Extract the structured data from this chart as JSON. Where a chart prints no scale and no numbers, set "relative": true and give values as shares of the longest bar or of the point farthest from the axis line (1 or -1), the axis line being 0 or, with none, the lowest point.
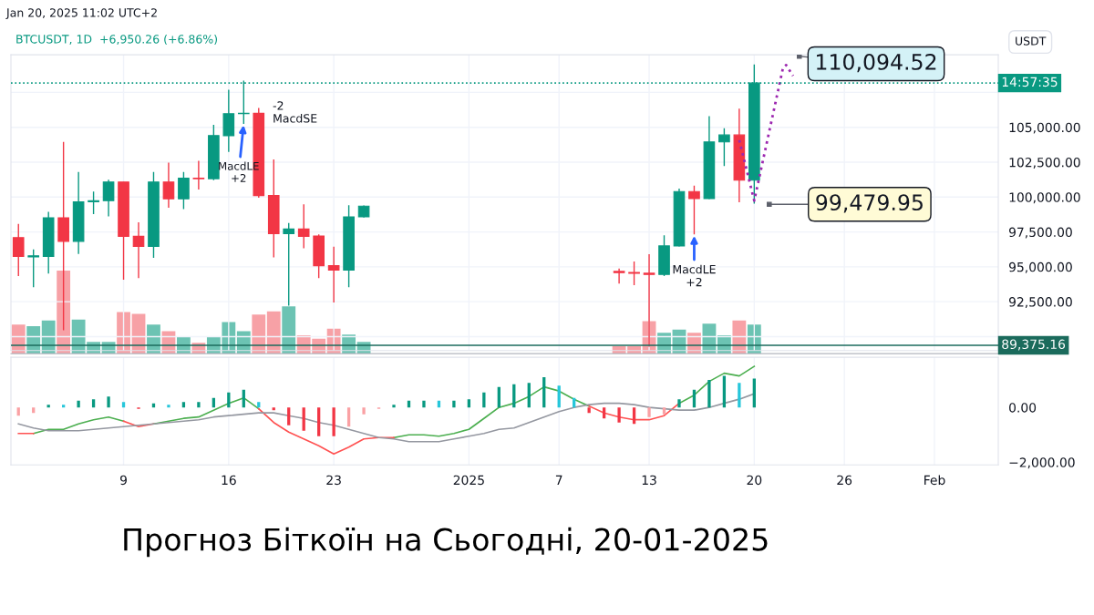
{
  "chart_data": [
    {
      "type": "candlestick",
      "title": "Прогноз Біткоїн на Сьогодні, 20-01-2025",
      "subtitle": "BTCUSDT, 1D  +6,950.26 (+6.86%)",
      "ylabel": "USDT",
      "x": [
        "2024-12-02",
        "2024-12-03",
        "2024-12-04",
        "2024-12-05",
        "2024-12-06",
        "2024-12-07",
        "2024-12-08",
        "2024-12-09",
        "2024-12-10",
        "2024-12-11",
        "2024-12-12",
        "2024-12-13",
        "2024-12-14",
        "2024-12-15",
        "2024-12-16",
        "2024-12-17",
        "2024-12-18",
        "2024-12-19",
        "2024-12-20",
        "2024-12-21",
        "2024-12-22",
        "2024-12-23",
        "2024-12-24",
        "2024-12-25",
        "2025-01-11",
        "2025-01-12",
        "2025-01-13",
        "2025-01-14",
        "2025-01-15",
        "2025-01-16",
        "2025-01-17",
        "2025-01-18",
        "2025-01-19",
        "2025-01-20"
      ],
      "ohlc": [
        [
          97100,
          98080,
          94340,
          95750
        ],
        [
          95720,
          96240,
          93540,
          95790
        ],
        [
          95750,
          98940,
          94510,
          98510
        ],
        [
          98510,
          103950,
          90450,
          96830
        ],
        [
          96830,
          101790,
          95920,
          99660
        ],
        [
          99660,
          100390,
          98770,
          99740
        ],
        [
          99740,
          101250,
          98620,
          101080
        ],
        [
          101080,
          101080,
          94080,
          97190
        ],
        [
          97190,
          98190,
          94190,
          96460
        ],
        [
          96460,
          101790,
          95640,
          101080
        ],
        [
          101080,
          102460,
          99240,
          99870
        ],
        [
          99870,
          101790,
          99140,
          101360
        ],
        [
          101360,
          102590,
          100540,
          101320
        ],
        [
          101320,
          105180,
          101210,
          104410
        ],
        [
          104390,
          107690,
          103240,
          105980
        ],
        [
          105980,
          108340,
          105250,
          106000
        ],
        [
          106000,
          106390,
          99960,
          100110
        ],
        [
          100110,
          102700,
          95680,
          97370
        ],
        [
          97370,
          98140,
          92220,
          97710
        ],
        [
          97710,
          99480,
          96330,
          97190
        ],
        [
          97210,
          97320,
          94190,
          95080
        ],
        [
          95080,
          96440,
          92440,
          94770
        ],
        [
          94770,
          99420,
          93540,
          98580
        ],
        [
          98580,
          99400,
          98530,
          99350
        ],
        [
          94670,
          94880,
          93800,
          94580
        ],
        [
          94600,
          95380,
          93690,
          94540
        ],
        [
          94540,
          95900,
          89270,
          94450
        ],
        [
          94450,
          97260,
          94340,
          96500
        ],
        [
          96500,
          100600,
          96460,
          100390
        ],
        [
          100390,
          100820,
          97320,
          99890
        ],
        [
          99890,
          105790,
          99850,
          103950
        ],
        [
          103950,
          104930,
          102230,
          104450
        ],
        [
          104450,
          106330,
          99630,
          101210
        ],
        [
          101210,
          109500,
          99530,
          108170
        ]
      ],
      "colors": [
        "#f23645",
        "#089981",
        "#089981",
        "#f23645",
        "#089981",
        "#089981",
        "#089981",
        "#f23645",
        "#f23645",
        "#089981",
        "#f23645",
        "#089981",
        "#f23645",
        "#089981",
        "#089981",
        "#089981",
        "#f23645",
        "#f23645",
        "#089981",
        "#f23645",
        "#f23645",
        "#f23645",
        "#089981",
        "#089981",
        "#f23645",
        "#f23645",
        "#f23645",
        "#089981",
        "#089981",
        "#f23645",
        "#089981",
        "#089981",
        "#f23645",
        "#089981"
      ],
      "series": [
        {
          "type": "line",
          "x": [
            "2025-01-19",
            "2025-01-20",
            "2025-01-21T22:00",
            "2025-01-22T03:00",
            "2025-01-22T14:00"
          ],
          "values": [
            104080,
            99740,
            109270,
            109460,
            108680
          ],
          "color": "#9c27b0",
          "line_style": "dotted"
        }
      ],
      "xlim": [
        "2024-12-01T12:00",
        "2025-02-05T06:00"
      ],
      "xticks": [
        {
          "value": "2024-12-09",
          "label": null
        },
        {
          "value": "2024-12-16",
          "label": null
        },
        {
          "value": "2024-12-23",
          "label": null
        },
        {
          "value": "2025-01-01",
          "label": null
        },
        {
          "value": "2025-01-07",
          "label": null
        },
        {
          "value": "2025-01-13",
          "label": null
        },
        {
          "value": "2025-01-20",
          "label": null
        },
        {
          "value": "2025-01-26",
          "label": null
        },
        {
          "value": "2025-02-01",
          "label": null
        }
      ],
      "ylim": [
        89000,
        110200
      ],
      "yticks": [
        {
          "value": 90000,
          "label": null
        },
        {
          "value": 92500,
          "label": "92,500.00"
        },
        {
          "value": 95000,
          "label": "95,000.00"
        },
        {
          "value": 97500,
          "label": "97,500.00"
        },
        {
          "value": 100000,
          "label": "100,000.00"
        },
        {
          "value": 102500,
          "label": "102,500.00"
        },
        {
          "value": 105000,
          "label": "105,000.00"
        },
        {
          "value": 107500,
          "label": null
        }
      ],
      "tick_labels": "y",
      "grid": true,
      "ref_lines": [
        {
          "axis": "y",
          "value": 108170,
          "color": "#089981",
          "line_style": "dotted"
        },
        {
          "axis": "y",
          "value": 89375.16,
          "label": "89,375.16",
          "color": "#1b6b5c",
          "line_style": "solid"
        }
      ],
      "annotations": [
        "Jan 20, 2025 11:02 UTC+2",
        {
          "text": "110,094.52",
          "x": "2025-01-23",
          "y": 110094.52
        },
        {
          "text": "99,479.95",
          "x": "2025-01-21",
          "y": 99479.95
        },
        {
          "text": "-2\nMacdSE",
          "x": "2024-12-18",
          "y": 106390
        },
        {
          "text": "MacdLE\n+2",
          "x": "2024-12-17",
          "y": 105250
        },
        {
          "text": "MacdLE\n+2",
          "x": "2025-01-16",
          "y": 97320
        },
        "14:57:35"
      ]
    },
    {
      "type": "bar",
      "relative": true,
      "tick_labels": false,
      "x": [
        "2024-12-02",
        "2024-12-03",
        "2024-12-04",
        "2024-12-05",
        "2024-12-06",
        "2024-12-07",
        "2024-12-08",
        "2024-12-09",
        "2024-12-10",
        "2024-12-11",
        "2024-12-12",
        "2024-12-13",
        "2024-12-14",
        "2024-12-15",
        "2024-12-16",
        "2024-12-17",
        "2024-12-18",
        "2024-12-19",
        "2024-12-20",
        "2024-12-21",
        "2024-12-22",
        "2024-12-23",
        "2024-12-24",
        "2024-12-25",
        "2025-01-11",
        "2025-01-12",
        "2025-01-13",
        "2025-01-14",
        "2025-01-15",
        "2025-01-16",
        "2025-01-17",
        "2025-01-18",
        "2025-01-19",
        "2025-01-20"
      ],
      "values": [
        0.35,
        0.33,
        0.4,
        1,
        0.41,
        0.14,
        0.14,
        0.5,
        0.48,
        0.35,
        0.27,
        0.21,
        0.13,
        0.21,
        0.38,
        0.27,
        0.47,
        0.51,
        0.57,
        0.22,
        0.18,
        0.3,
        0.23,
        0.14,
        0.09,
        0.09,
        0.39,
        0.25,
        0.29,
        0.25,
        0.36,
        0.22,
        0.4,
        0.35
      ],
      "colors": [
        "#f7a1a6",
        "#6cc3b3",
        "#6cc3b3",
        "#f7a1a6",
        "#6cc3b3",
        "#6cc3b3",
        "#6cc3b3",
        "#f7a1a6",
        "#f7a1a6",
        "#6cc3b3",
        "#f7a1a6",
        "#6cc3b3",
        "#f7a1a6",
        "#6cc3b3",
        "#6cc3b3",
        "#6cc3b3",
        "#f7a1a6",
        "#f7a1a6",
        "#6cc3b3",
        "#f7a1a6",
        "#f7a1a6",
        "#f7a1a6",
        "#6cc3b3",
        "#6cc3b3",
        "#f7a1a6",
        "#f7a1a6",
        "#f7a1a6",
        "#6cc3b3",
        "#6cc3b3",
        "#f7a1a6",
        "#6cc3b3",
        "#6cc3b3",
        "#f7a1a6",
        "#6cc3b3"
      ],
      "xlim": [
        "2024-12-01T12:00",
        "2025-02-05T06:00"
      ]
    },
    {
      "type": "bar",
      "grid": "x",
      "x": [
        "2024-12-02",
        "2024-12-03",
        "2024-12-04",
        "2024-12-05",
        "2024-12-06",
        "2024-12-07",
        "2024-12-08",
        "2024-12-09",
        "2024-12-10",
        "2024-12-11",
        "2024-12-12",
        "2024-12-13",
        "2024-12-14",
        "2024-12-15",
        "2024-12-16",
        "2024-12-17",
        "2024-12-18",
        "2024-12-19",
        "2024-12-20",
        "2024-12-21",
        "2024-12-22",
        "2024-12-23",
        "2024-12-24",
        "2024-12-25",
        "2024-12-26",
        "2024-12-27",
        "2024-12-28",
        "2024-12-29",
        "2024-12-30",
        "2024-12-31",
        "2025-01-01",
        "2025-01-02",
        "2025-01-03",
        "2025-01-04",
        "2025-01-05",
        "2025-01-06",
        "2025-01-07",
        "2025-01-08",
        "2025-01-09",
        "2025-01-10",
        "2025-01-11",
        "2025-01-12",
        "2025-01-13",
        "2025-01-14",
        "2025-01-15",
        "2025-01-16",
        "2025-01-17",
        "2025-01-18",
        "2025-01-19",
        "2025-01-20"
      ],
      "series": [
        {
          "values": [
            -300,
            -200,
            100,
            100,
            250,
            300,
            400,
            200,
            -50,
            150,
            100,
            200,
            200,
            350,
            550,
            650,
            200,
            -100,
            -650,
            -850,
            -1050,
            -1050,
            -700,
            -250,
            -50,
            100,
            250,
            250,
            250,
            250,
            300,
            550,
            750,
            850,
            900,
            1100,
            800,
            350,
            -200,
            -400,
            -550,
            -600,
            -350,
            -250,
            300,
            650,
            1000,
            1150,
            900,
            1050
          ],
          "colors": [
            "#faa1a4",
            "#faa1a4",
            "#089981",
            "#26c6da",
            "#089981",
            "#089981",
            "#089981",
            "#26c6da",
            "#f23645",
            "#089981",
            "#26c6da",
            "#089981",
            "#089981",
            "#089981",
            "#089981",
            "#089981",
            "#26c6da",
            "#f23645",
            "#f23645",
            "#f23645",
            "#f23645",
            "#f23645",
            "#faa1a4",
            "#faa1a4",
            "#faa1a4",
            "#089981",
            "#089981",
            "#089981",
            "#26c6da",
            "#089981",
            "#089981",
            "#089981",
            "#089981",
            "#089981",
            "#089981",
            "#089981",
            "#26c6da",
            "#26c6da",
            "#f23645",
            "#f23645",
            "#f23645",
            "#f23645",
            "#faa1a4",
            "#faa1a4",
            "#089981",
            "#089981",
            "#089981",
            "#089981",
            "#26c6da",
            "#089981"
          ]
        },
        {
          "type": "line",
          "color": "#4caf50",
          "values": [
            null,
            -950,
            -800,
            -800,
            -600,
            -450,
            -350,
            -500,
            null,
            -600,
            -500,
            -400,
            -350,
            -100,
            150,
            350,
            -50,
            null,
            null,
            null,
            null,
            null,
            null,
            null,
            null,
            -1100,
            -1000,
            -1000,
            -1050,
            -950,
            -800,
            -400,
            0,
            150,
            400,
            750,
            600,
            300,
            50,
            null,
            null,
            null,
            null,
            null,
            150,
            450,
            950,
            1250,
            1150,
            1500
          ]
        },
        {
          "type": "line",
          "color": "#ff5252",
          "values": [
            -950,
            -950,
            null,
            null,
            null,
            null,
            null,
            -500,
            -700,
            -600,
            null,
            null,
            null,
            null,
            null,
            null,
            -50,
            -550,
            -900,
            -1150,
            -1400,
            -1700,
            -1450,
            -1150,
            -1100,
            -1100,
            null,
            null,
            null,
            null,
            null,
            null,
            null,
            null,
            null,
            null,
            null,
            null,
            50,
            -200,
            -350,
            -450,
            -450,
            -300,
            150,
            null,
            null,
            null,
            null,
            null
          ]
        },
        {
          "type": "line",
          "color": "#9598a1",
          "values": [
            -600,
            -750,
            -850,
            -850,
            -850,
            -800,
            -750,
            -700,
            -650,
            -600,
            -550,
            -500,
            -450,
            -350,
            -300,
            -250,
            -200,
            -200,
            -300,
            -400,
            -550,
            -650,
            -800,
            -950,
            -1100,
            -1150,
            -1250,
            -1250,
            -1250,
            -1150,
            -1050,
            -950,
            -800,
            -750,
            -550,
            -350,
            -150,
            0,
            100,
            150,
            150,
            100,
            0,
            -50,
            -100,
            -100,
            0,
            150,
            300,
            500
          ]
        }
      ],
      "xlim": [
        "2024-12-01T12:00",
        "2025-02-05T06:00"
      ],
      "xticks": [
        {
          "value": "2024-12-09",
          "label": "9"
        },
        {
          "value": "2024-12-16",
          "label": "16"
        },
        {
          "value": "2024-12-23",
          "label": "23"
        },
        {
          "value": "2025-01-01",
          "label": "2025"
        },
        {
          "value": "2025-01-07",
          "label": "7"
        },
        {
          "value": "2025-01-13",
          "label": "13"
        },
        {
          "value": "2025-01-20",
          "label": "20"
        },
        {
          "value": "2025-01-26",
          "label": "26"
        },
        {
          "value": "2025-02-01",
          "label": "Feb"
        }
      ],
      "ylim": [
        -2100,
        1830
      ],
      "yticks": [
        {
          "value": 0,
          "label": "0.00"
        },
        {
          "value": -2000,
          "label": "−2,000.00"
        }
      ]
    }
  ]
}
